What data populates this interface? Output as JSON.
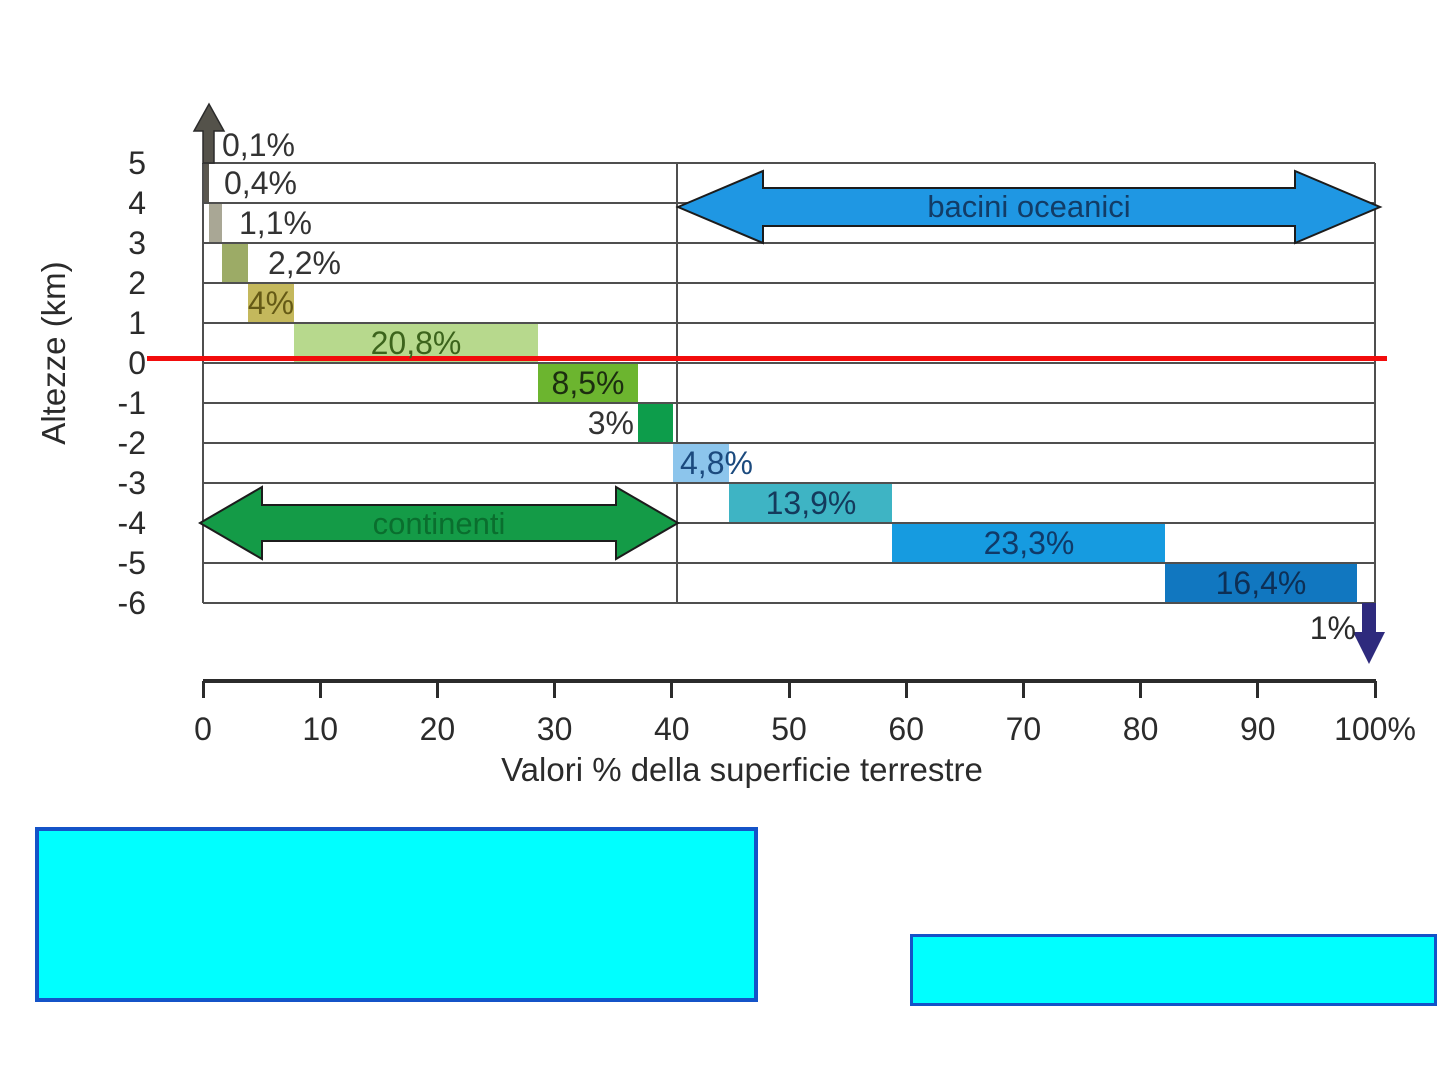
{
  "page": {
    "background_color": "#ffffff"
  },
  "chart_data": {
    "type": "bar",
    "variant": "hypsographic-staircase-histogram",
    "title": "",
    "xlabel": "Valori % della superficie terrestre",
    "ylabel": "Altezze (km)",
    "x_ticks": [
      "0",
      "10",
      "20",
      "30",
      "40",
      "50",
      "60",
      "70",
      "80",
      "90",
      "100%"
    ],
    "xlim": [
      0,
      100
    ],
    "y_ticks": [
      "5",
      "4",
      "3",
      "2",
      "1",
      "0",
      "-1",
      "-2",
      "-3",
      "-4",
      "-5",
      "-6"
    ],
    "ylim_km": [
      -6,
      5
    ],
    "grid": true,
    "axis_color": "#2b2b2b",
    "grid_color": "#4f4f4f",
    "bands": [
      {
        "elevation_band_km": "above 5",
        "label": "0,1%",
        "value_pct": 0.1,
        "shape": "arrow-up",
        "color": "#54524a",
        "label_color": "#333333"
      },
      {
        "elevation_band_km": "4 to 5",
        "label": "0,4%",
        "value_pct": 0.4,
        "shape": "bar",
        "color": "#5a574f",
        "label_color": "#333333"
      },
      {
        "elevation_band_km": "3 to 4",
        "label": "1,1%",
        "value_pct": 1.1,
        "shape": "bar",
        "color": "#a9a795",
        "label_color": "#333333"
      },
      {
        "elevation_band_km": "2 to 3",
        "label": "2,2%",
        "value_pct": 2.2,
        "shape": "bar",
        "color": "#9cab66",
        "label_color": "#333333"
      },
      {
        "elevation_band_km": "1 to 2",
        "label": "4%",
        "value_pct": 4.0,
        "shape": "bar",
        "color": "#c4b85c",
        "label_color": "#655a16"
      },
      {
        "elevation_band_km": "0 to 1",
        "label": "20,8%",
        "value_pct": 20.8,
        "shape": "bar",
        "color": "#b7d98d",
        "label_color": "#3c641c"
      },
      {
        "elevation_band_km": "-1 to 0",
        "label": "8,5%",
        "value_pct": 8.5,
        "shape": "bar",
        "color": "#6cb52f",
        "label_color": "#1c2e10"
      },
      {
        "elevation_band_km": "-2 to -1",
        "label": "3%",
        "value_pct": 3.0,
        "shape": "bar",
        "color": "#0d9d4b",
        "label_color": "#333333"
      },
      {
        "elevation_band_km": "-3 to -2",
        "label": "4,8%",
        "value_pct": 4.8,
        "shape": "bar",
        "color": "#8cc5ec",
        "label_color": "#1b4a7e"
      },
      {
        "elevation_band_km": "-4 to -3",
        "label": "13,9%",
        "value_pct": 13.9,
        "shape": "bar",
        "color": "#3eb4c4",
        "label_color": "#143a5c"
      },
      {
        "elevation_band_km": "-5 to -4",
        "label": "23,3%",
        "value_pct": 23.3,
        "shape": "bar",
        "color": "#169be0",
        "label_color": "#103a68"
      },
      {
        "elevation_band_km": "-6 to -5",
        "label": "16,4%",
        "value_pct": 16.4,
        "shape": "bar",
        "color": "#1177c0",
        "label_color": "#0d2f55"
      },
      {
        "elevation_band_km": "below -6",
        "label": "1%",
        "value_pct": 1.0,
        "shape": "arrow-down",
        "color": "#2e2a7d",
        "label_color": "#2b2b2b"
      }
    ],
    "annotations": [
      {
        "text": "continenti",
        "arrow_color": "#149b47",
        "text_color": "#0a6e2e",
        "span_pct": [
          0,
          40.5
        ],
        "at_km": -4
      },
      {
        "text": "bacini oceanici",
        "arrow_color": "#1f97e3",
        "text_color": "#123c66",
        "span_pct": [
          40.5,
          100
        ],
        "at_km": 4
      }
    ],
    "sea_level_line": {
      "at_km": 0,
      "color": "#f20c0c"
    }
  },
  "highlight_boxes": [
    {
      "id": "left",
      "fill": "#00ffff",
      "border": "#1453c8"
    },
    {
      "id": "right",
      "fill": "#00ffff",
      "border": "#1453c8"
    }
  ]
}
